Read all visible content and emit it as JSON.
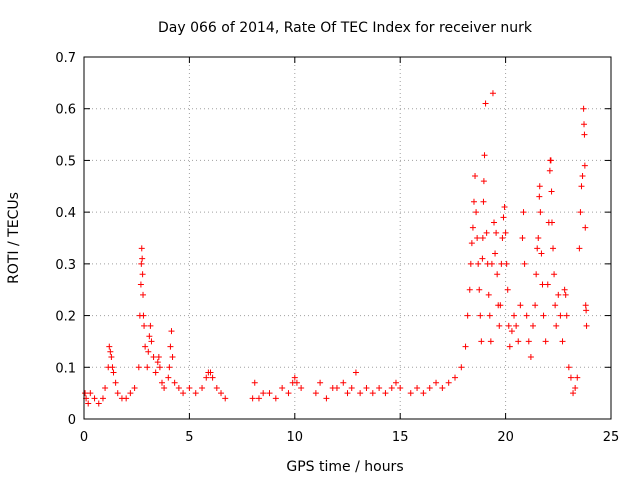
{
  "chart_data": {
    "type": "scatter",
    "title": "Day 066 of 2014, Rate Of TEC Index for receiver nurk",
    "xlabel": "GPS time / hours",
    "ylabel": "ROTI / TECUs",
    "xlim": [
      0,
      25
    ],
    "ylim": [
      0,
      0.7
    ],
    "x_ticks": [
      0,
      5,
      10,
      15,
      20,
      25
    ],
    "y_ticks": [
      0,
      0.1,
      0.2,
      0.3,
      0.4,
      0.5,
      0.6,
      0.7
    ],
    "x_tick_labels": [
      "0",
      "5",
      "10",
      "15",
      "20",
      "25"
    ],
    "y_tick_labels": [
      "0",
      "0.1",
      "0.2",
      "0.3",
      "0.4",
      "0.5",
      "0.6",
      "0.7"
    ],
    "grid": true,
    "marker": "+",
    "marker_color": "#ff0000",
    "series": [
      {
        "name": "ROTI",
        "points": [
          [
            0.05,
            0.05
          ],
          [
            0.1,
            0.04
          ],
          [
            0.2,
            0.03
          ],
          [
            0.3,
            0.05
          ],
          [
            0.5,
            0.04
          ],
          [
            0.7,
            0.03
          ],
          [
            0.9,
            0.04
          ],
          [
            1.0,
            0.06
          ],
          [
            1.15,
            0.1
          ],
          [
            1.2,
            0.14
          ],
          [
            1.25,
            0.13
          ],
          [
            1.3,
            0.12
          ],
          [
            1.35,
            0.1
          ],
          [
            1.4,
            0.09
          ],
          [
            1.5,
            0.07
          ],
          [
            1.6,
            0.05
          ],
          [
            1.8,
            0.04
          ],
          [
            2.0,
            0.04
          ],
          [
            2.2,
            0.05
          ],
          [
            2.4,
            0.06
          ],
          [
            2.6,
            0.1
          ],
          [
            2.65,
            0.2
          ],
          [
            2.7,
            0.26
          ],
          [
            2.72,
            0.3
          ],
          [
            2.74,
            0.33
          ],
          [
            2.76,
            0.31
          ],
          [
            2.78,
            0.28
          ],
          [
            2.8,
            0.24
          ],
          [
            2.82,
            0.2
          ],
          [
            2.85,
            0.18
          ],
          [
            2.9,
            0.14
          ],
          [
            3.0,
            0.1
          ],
          [
            3.05,
            0.13
          ],
          [
            3.1,
            0.16
          ],
          [
            3.15,
            0.18
          ],
          [
            3.2,
            0.15
          ],
          [
            3.3,
            0.12
          ],
          [
            3.4,
            0.09
          ],
          [
            3.5,
            0.11
          ],
          [
            3.55,
            0.12
          ],
          [
            3.6,
            0.1
          ],
          [
            3.7,
            0.07
          ],
          [
            3.8,
            0.06
          ],
          [
            4.0,
            0.08
          ],
          [
            4.05,
            0.1
          ],
          [
            4.1,
            0.14
          ],
          [
            4.15,
            0.17
          ],
          [
            4.2,
            0.12
          ],
          [
            4.3,
            0.07
          ],
          [
            4.5,
            0.06
          ],
          [
            4.7,
            0.05
          ],
          [
            5.0,
            0.06
          ],
          [
            5.3,
            0.05
          ],
          [
            5.6,
            0.06
          ],
          [
            5.8,
            0.08
          ],
          [
            5.9,
            0.09
          ],
          [
            6.0,
            0.09
          ],
          [
            6.1,
            0.08
          ],
          [
            6.3,
            0.06
          ],
          [
            6.5,
            0.05
          ],
          [
            6.7,
            0.04
          ],
          [
            8.0,
            0.04
          ],
          [
            8.1,
            0.07
          ],
          [
            8.3,
            0.04
          ],
          [
            8.5,
            0.05
          ],
          [
            8.8,
            0.05
          ],
          [
            9.1,
            0.04
          ],
          [
            9.4,
            0.06
          ],
          [
            9.7,
            0.05
          ],
          [
            9.9,
            0.07
          ],
          [
            10.0,
            0.08
          ],
          [
            10.1,
            0.07
          ],
          [
            10.3,
            0.06
          ],
          [
            11.0,
            0.05
          ],
          [
            11.2,
            0.07
          ],
          [
            11.5,
            0.04
          ],
          [
            11.8,
            0.06
          ],
          [
            12.0,
            0.06
          ],
          [
            12.3,
            0.07
          ],
          [
            12.5,
            0.05
          ],
          [
            12.7,
            0.06
          ],
          [
            12.9,
            0.09
          ],
          [
            13.1,
            0.05
          ],
          [
            13.4,
            0.06
          ],
          [
            13.7,
            0.05
          ],
          [
            14.0,
            0.06
          ],
          [
            14.3,
            0.05
          ],
          [
            14.6,
            0.06
          ],
          [
            14.8,
            0.07
          ],
          [
            15.0,
            0.06
          ],
          [
            15.5,
            0.05
          ],
          [
            15.8,
            0.06
          ],
          [
            16.1,
            0.05
          ],
          [
            16.4,
            0.06
          ],
          [
            16.7,
            0.07
          ],
          [
            17.0,
            0.06
          ],
          [
            17.3,
            0.07
          ],
          [
            17.6,
            0.08
          ],
          [
            17.9,
            0.1
          ],
          [
            18.1,
            0.14
          ],
          [
            18.2,
            0.2
          ],
          [
            18.3,
            0.25
          ],
          [
            18.35,
            0.3
          ],
          [
            18.4,
            0.34
          ],
          [
            18.45,
            0.37
          ],
          [
            18.5,
            0.42
          ],
          [
            18.55,
            0.47
          ],
          [
            18.6,
            0.4
          ],
          [
            18.65,
            0.35
          ],
          [
            18.7,
            0.3
          ],
          [
            18.75,
            0.25
          ],
          [
            18.8,
            0.2
          ],
          [
            18.85,
            0.15
          ],
          [
            18.9,
            0.31
          ],
          [
            18.92,
            0.35
          ],
          [
            18.95,
            0.42
          ],
          [
            18.97,
            0.46
          ],
          [
            19.0,
            0.51
          ],
          [
            19.05,
            0.61
          ],
          [
            19.1,
            0.36
          ],
          [
            19.15,
            0.3
          ],
          [
            19.2,
            0.24
          ],
          [
            19.25,
            0.2
          ],
          [
            19.3,
            0.15
          ],
          [
            19.35,
            0.3
          ],
          [
            19.4,
            0.63
          ],
          [
            19.45,
            0.38
          ],
          [
            19.5,
            0.32
          ],
          [
            19.55,
            0.36
          ],
          [
            19.6,
            0.28
          ],
          [
            19.65,
            0.22
          ],
          [
            19.7,
            0.18
          ],
          [
            19.75,
            0.22
          ],
          [
            19.8,
            0.3
          ],
          [
            19.85,
            0.35
          ],
          [
            19.9,
            0.39
          ],
          [
            19.95,
            0.41
          ],
          [
            20.0,
            0.36
          ],
          [
            20.05,
            0.3
          ],
          [
            20.1,
            0.25
          ],
          [
            20.15,
            0.18
          ],
          [
            20.2,
            0.14
          ],
          [
            20.3,
            0.17
          ],
          [
            20.4,
            0.2
          ],
          [
            20.5,
            0.18
          ],
          [
            20.6,
            0.15
          ],
          [
            20.7,
            0.22
          ],
          [
            20.8,
            0.35
          ],
          [
            20.85,
            0.4
          ],
          [
            20.9,
            0.3
          ],
          [
            21.0,
            0.2
          ],
          [
            21.1,
            0.15
          ],
          [
            21.2,
            0.12
          ],
          [
            21.3,
            0.18
          ],
          [
            21.4,
            0.22
          ],
          [
            21.45,
            0.28
          ],
          [
            21.5,
            0.33
          ],
          [
            21.55,
            0.35
          ],
          [
            21.6,
            0.43
          ],
          [
            21.62,
            0.45
          ],
          [
            21.65,
            0.4
          ],
          [
            21.7,
            0.32
          ],
          [
            21.75,
            0.26
          ],
          [
            21.8,
            0.2
          ],
          [
            21.9,
            0.15
          ],
          [
            22.0,
            0.26
          ],
          [
            22.05,
            0.38
          ],
          [
            22.1,
            0.48
          ],
          [
            22.12,
            0.5
          ],
          [
            22.15,
            0.5
          ],
          [
            22.18,
            0.44
          ],
          [
            22.2,
            0.38
          ],
          [
            22.25,
            0.33
          ],
          [
            22.3,
            0.28
          ],
          [
            22.35,
            0.22
          ],
          [
            22.4,
            0.18
          ],
          [
            22.5,
            0.24
          ],
          [
            22.6,
            0.2
          ],
          [
            22.7,
            0.15
          ],
          [
            22.8,
            0.25
          ],
          [
            22.85,
            0.24
          ],
          [
            22.9,
            0.2
          ],
          [
            23.0,
            0.1
          ],
          [
            23.1,
            0.08
          ],
          [
            23.2,
            0.05
          ],
          [
            23.3,
            0.06
          ],
          [
            23.4,
            0.08
          ],
          [
            23.5,
            0.33
          ],
          [
            23.55,
            0.4
          ],
          [
            23.6,
            0.45
          ],
          [
            23.65,
            0.47
          ],
          [
            23.7,
            0.6
          ],
          [
            23.72,
            0.57
          ],
          [
            23.74,
            0.55
          ],
          [
            23.76,
            0.49
          ],
          [
            23.78,
            0.37
          ],
          [
            23.8,
            0.22
          ],
          [
            23.82,
            0.21
          ],
          [
            23.84,
            0.18
          ]
        ]
      }
    ]
  }
}
